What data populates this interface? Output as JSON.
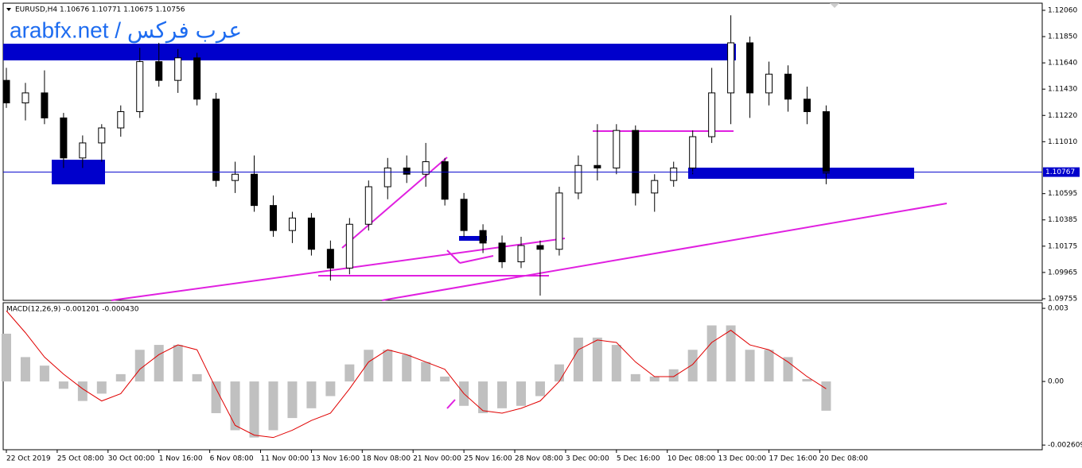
{
  "chart_data": [
    {
      "type": "candlestick",
      "title": "EURUSD,H4 1.10676 1.10771 1.10675 1.10756",
      "watermark": "arabfx.net / عرب فركس",
      "x": [
        0,
        6,
        12,
        18,
        24,
        30,
        36,
        42,
        48,
        54,
        60,
        66,
        72,
        78,
        84,
        90,
        96,
        102,
        108,
        114,
        120,
        126,
        132,
        138,
        144,
        150,
        156,
        162,
        168,
        174,
        180,
        186,
        192,
        198,
        204,
        210,
        216,
        222,
        228,
        234,
        240,
        246,
        252,
        258
      ],
      "open": [
        1.115,
        1.1132,
        1.114,
        1.112,
        1.1088,
        1.11,
        1.1112,
        1.1125,
        1.1165,
        1.115,
        1.1168,
        1.1135,
        1.107,
        1.1075,
        1.105,
        1.103,
        1.104,
        1.1015,
        1.1,
        1.1035,
        1.1065,
        1.108,
        1.1075,
        1.1085,
        1.1055,
        1.103,
        1.102,
        1.1005,
        1.1018,
        1.1015,
        1.106,
        1.1082,
        1.108,
        1.111,
        1.106,
        1.107,
        1.108,
        1.1105,
        1.114,
        1.118,
        1.114,
        1.1155,
        1.1135,
        1.1125
      ],
      "high": [
        1.116,
        1.1148,
        1.1158,
        1.1124,
        1.1106,
        1.1115,
        1.113,
        1.1176,
        1.118,
        1.1175,
        1.1172,
        1.114,
        1.1085,
        1.109,
        1.1058,
        1.1045,
        1.1044,
        1.1022,
        1.104,
        1.107,
        1.1088,
        1.109,
        1.11,
        1.1088,
        1.106,
        1.1035,
        1.1026,
        1.1025,
        1.1022,
        1.1065,
        1.109,
        1.1115,
        1.1115,
        1.1114,
        1.1075,
        1.1085,
        1.111,
        1.116,
        1.1202,
        1.1185,
        1.1165,
        1.1162,
        1.1145,
        1.113
      ],
      "low": [
        1.1128,
        1.1118,
        1.1115,
        1.108,
        1.108,
        1.1085,
        1.1105,
        1.112,
        1.1145,
        1.114,
        1.113,
        1.1065,
        1.106,
        1.1045,
        1.1025,
        1.102,
        1.101,
        1.099,
        1.0995,
        1.103,
        1.1055,
        1.1068,
        1.1065,
        1.105,
        1.1025,
        1.1012,
        1.1,
        1.1,
        1.0978,
        1.101,
        1.1055,
        1.107,
        1.1075,
        1.105,
        1.1045,
        1.1065,
        1.1075,
        1.11,
        1.1115,
        1.112,
        1.113,
        1.1125,
        1.1115,
        1.1067
      ],
      "close": [
        1.1132,
        1.114,
        1.112,
        1.1088,
        1.11,
        1.1112,
        1.1125,
        1.1165,
        1.115,
        1.1168,
        1.1135,
        1.107,
        1.1075,
        1.105,
        1.103,
        1.104,
        1.1015,
        1.1,
        1.1035,
        1.1065,
        1.108,
        1.1075,
        1.1085,
        1.1055,
        1.103,
        1.102,
        1.1005,
        1.1018,
        1.1015,
        1.106,
        1.1082,
        1.108,
        1.111,
        1.106,
        1.107,
        1.108,
        1.1105,
        1.114,
        1.118,
        1.114,
        1.1155,
        1.1135,
        1.1125,
        1.1076
      ],
      "xlim": [
        -0.5,
        326
      ],
      "ylim": [
        1.09742,
        1.12117
      ],
      "yticks": [
        {
          "value": 1.1206,
          "label": "1.12060"
        },
        {
          "value": 1.1185,
          "label": "1.11850"
        },
        {
          "value": 1.1164,
          "label": "1.11640"
        },
        {
          "value": 1.1143,
          "label": "1.11430"
        },
        {
          "value": 1.1122,
          "label": "1.11220"
        },
        {
          "value": 1.1101,
          "label": "1.11010"
        },
        1.10595,
        1.10385,
        1.10175,
        1.09965,
        1.09755
      ],
      "current_price": 1.10767,
      "up_color": "#ffffff",
      "down_color": "#000000",
      "line_color": "#000000",
      "price_line_color": "#0000cc"
    },
    {
      "type": "macd",
      "title": "MACD(12,26,9) -0.001201 -0.000430",
      "x": [
        0,
        6,
        12,
        18,
        24,
        30,
        36,
        42,
        48,
        54,
        60,
        66,
        72,
        78,
        84,
        90,
        96,
        102,
        108,
        114,
        120,
        126,
        132,
        138,
        144,
        150,
        156,
        162,
        168,
        174,
        180,
        186,
        192,
        198,
        204,
        210,
        216,
        222,
        228,
        234,
        240,
        246,
        252,
        258
      ],
      "histogram": {
        "color": "#c0c0c0",
        "values": [
          0.00196,
          0.001,
          0.00065,
          -0.0003,
          -0.0008,
          -0.0005,
          0.0003,
          0.0013,
          0.0015,
          0.0015,
          0.0003,
          -0.0013,
          -0.002,
          -0.0023,
          -0.002,
          -0.0015,
          -0.0011,
          -0.0006,
          0.0007,
          0.0013,
          0.0013,
          0.0011,
          0.0008,
          0.0002,
          -0.001,
          -0.0013,
          -0.0011,
          -0.001,
          -0.0006,
          0.0007,
          0.0018,
          0.0018,
          0.0015,
          0.0003,
          0.0002,
          0.0005,
          0.0013,
          0.0023,
          0.0023,
          0.0013,
          0.0013,
          0.001,
          0.0001,
          -0.0012
        ]
      },
      "signal": {
        "color": "#e00000",
        "values": [
          0.0029,
          0.002,
          0.001,
          0.0003,
          -0.0003,
          -0.0008,
          -0.0005,
          0.0005,
          0.0011,
          0.0015,
          0.0013,
          -0.0003,
          -0.0018,
          -0.0022,
          -0.0023,
          -0.002,
          -0.0016,
          -0.0013,
          -0.0003,
          0.0008,
          0.0013,
          0.0011,
          0.0008,
          0.0005,
          -0.0005,
          -0.0012,
          -0.0013,
          -0.0011,
          -0.0008,
          0,
          0.0013,
          0.0017,
          0.0016,
          0.0008,
          0.0002,
          0.0002,
          0.0007,
          0.0016,
          0.0021,
          0.0015,
          0.0013,
          0.0008,
          0.0002,
          -0.0003
        ]
      },
      "xlim": [
        -0.5,
        326
      ],
      "ylim": [
        -0.0028,
        0.00323
      ],
      "yticks": [
        0.003,
        {
          "value": 0,
          "label": "0.00"
        },
        -0.002609
      ],
      "xticks": [
        {
          "value": 0,
          "label": "22 Oct 2019"
        },
        {
          "value": 16,
          "label": "25 Oct 08:00"
        },
        {
          "value": 32,
          "label": "30 Oct 00:00"
        },
        {
          "value": 48,
          "label": "1 Nov 16:00"
        },
        {
          "value": 64,
          "label": "6 Nov 08:00"
        },
        {
          "value": 80,
          "label": "11 Nov 00:00"
        },
        {
          "value": 96,
          "label": "13 Nov 16:00"
        },
        {
          "value": 112,
          "label": "18 Nov 08:00"
        },
        {
          "value": 128,
          "label": "21 Nov 00:00"
        },
        {
          "value": 144,
          "label": "25 Nov 16:00"
        },
        {
          "value": 160,
          "label": "28 Nov 08:00"
        },
        {
          "value": 176,
          "label": "3 Dec 00:00"
        },
        {
          "value": 192,
          "label": "5 Dec 16:00"
        },
        {
          "value": 208,
          "label": "10 Dec 08:00"
        },
        {
          "value": 224,
          "label": "13 Dec 00:00"
        },
        {
          "value": 240,
          "label": "17 Dec 16:00"
        },
        {
          "value": 256,
          "label": "20 Dec 08:00"
        }
      ]
    }
  ]
}
